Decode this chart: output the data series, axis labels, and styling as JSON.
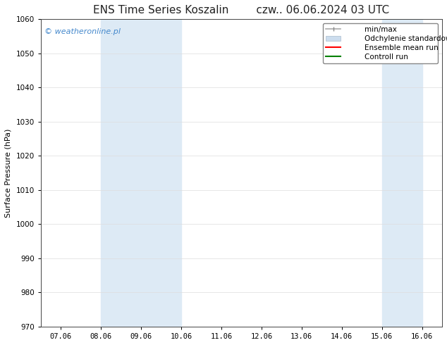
{
  "title_left": "ENS Time Series Koszalin",
  "title_right": "czw.. 06.06.2024 03 UTC",
  "ylabel": "Surface Pressure (hPa)",
  "ylim": [
    970,
    1060
  ],
  "yticks": [
    970,
    980,
    990,
    1000,
    1010,
    1020,
    1030,
    1040,
    1050,
    1060
  ],
  "xtick_labels": [
    "07.06",
    "08.06",
    "09.06",
    "10.06",
    "11.06",
    "12.06",
    "13.06",
    "14.06",
    "15.06",
    "16.06"
  ],
  "xtick_positions": [
    0,
    1,
    2,
    3,
    4,
    5,
    6,
    7,
    8,
    9
  ],
  "shaded_regions": [
    {
      "xmin": 1.0,
      "xmax": 3.0,
      "color": "#ddeaf5"
    },
    {
      "xmin": 8.0,
      "xmax": 9.0,
      "color": "#ddeaf5"
    }
  ],
  "watermark_text": "© weatheronline.pl",
  "watermark_color": "#4488cc",
  "background_color": "#ffffff",
  "plot_background": "#ffffff",
  "legend_items": [
    {
      "label": "min/max",
      "color": "#aaaaaa",
      "lw": 1.2
    },
    {
      "label": "Odchylenie standardowe",
      "color": "#ccddee",
      "lw": 6
    },
    {
      "label": "Ensemble mean run",
      "color": "#ff0000",
      "lw": 1.5
    },
    {
      "label": "Controll run",
      "color": "#008000",
      "lw": 1.5
    }
  ],
  "title_fontsize": 11,
  "axis_label_fontsize": 8,
  "tick_fontsize": 7.5,
  "legend_fontsize": 7.5,
  "watermark_fontsize": 8
}
